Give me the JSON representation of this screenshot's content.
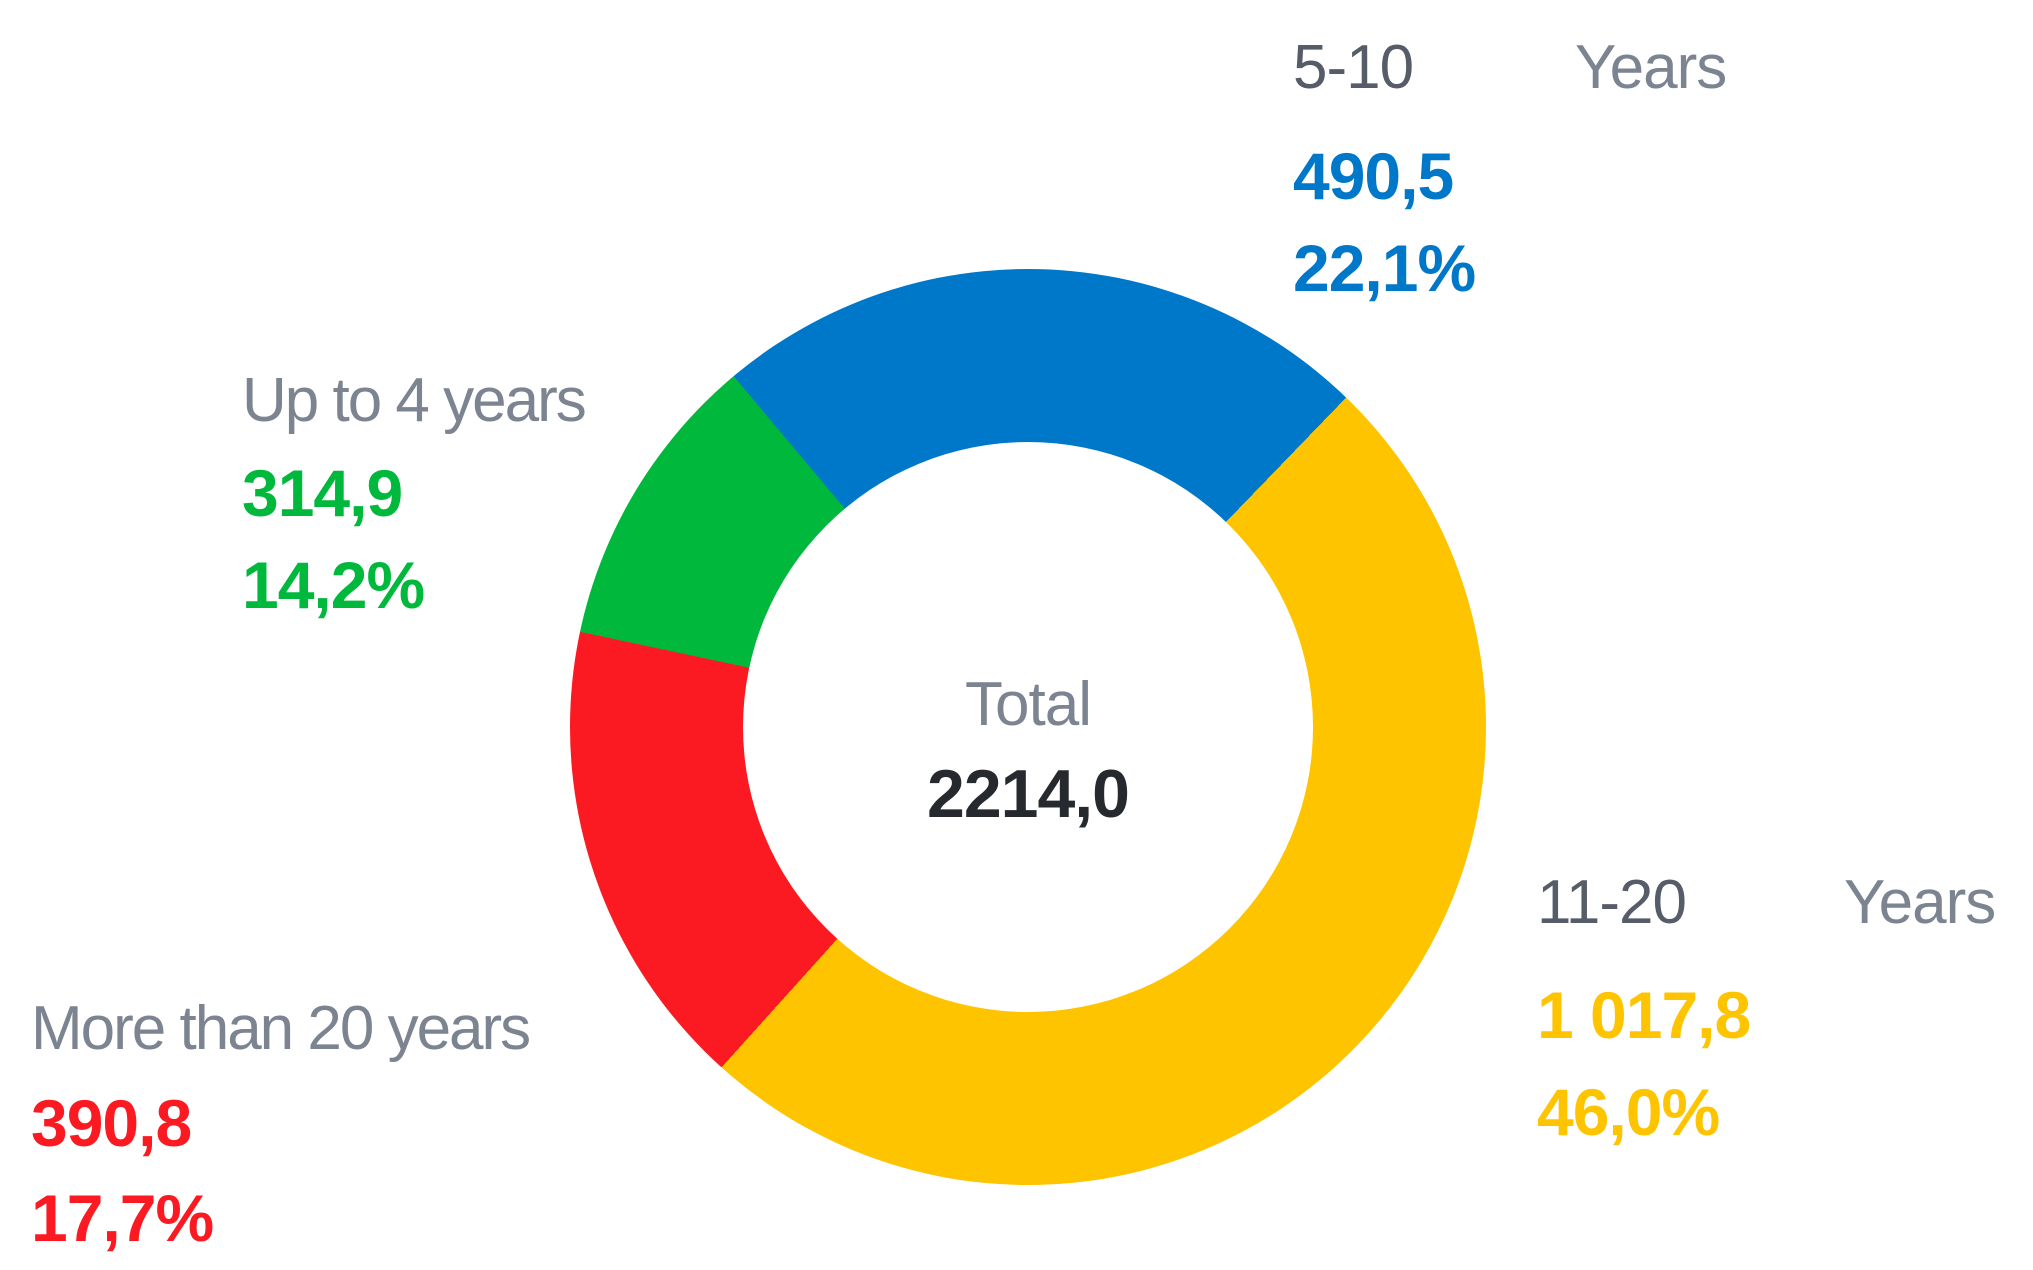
{
  "chart_data": {
    "type": "pie",
    "subtype": "donut",
    "title": "",
    "center_label": "Total",
    "center_value": "2214,0",
    "total_num": 2214.0,
    "legend_position": "callouts-around-ring",
    "background": "#ffffff",
    "text_colors": {
      "range_label": "#565d68",
      "muted_label": "#7b8490",
      "total_value": "#26292e"
    },
    "slices": [
      {
        "label": "5-10",
        "label2": "Years",
        "value": "490,5",
        "value_num": 490.5,
        "pct": "22,1%",
        "pct_num": 22.1,
        "color": "#0078C9",
        "start_deg": -40,
        "end_deg": 44
      },
      {
        "label": "11-20",
        "label2": "Years",
        "value": "1 017,8",
        "value_num": 1017.8,
        "pct": "46,0%",
        "pct_num": 46.0,
        "color": "#FFC400",
        "start_deg": 44,
        "end_deg": 222
      },
      {
        "label": "More than 20 years",
        "value": "390,8",
        "value_num": 390.8,
        "pct": "17,7%",
        "pct_num": 17.7,
        "color": "#FB1A21",
        "start_deg": 222,
        "end_deg": 282
      },
      {
        "label": "Up to 4 years",
        "value": "314,9",
        "value_num": 314.9,
        "pct": "14,2%",
        "pct_num": 14.2,
        "color": "#00B93C",
        "start_deg": 282,
        "end_deg": 320
      }
    ]
  }
}
